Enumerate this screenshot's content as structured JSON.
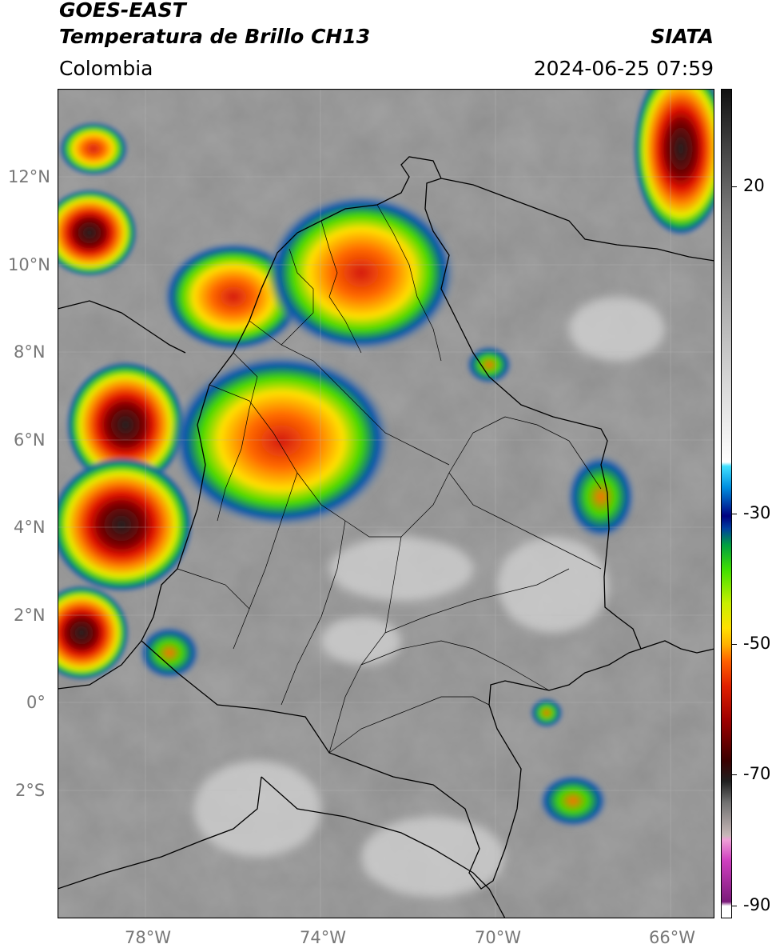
{
  "header": {
    "satellite": "GOES-EAST",
    "product": "Temperatura de Brillo CH13",
    "region": "Colombia",
    "organization": "SIATA",
    "datetime": "2024-06-25 07:59"
  },
  "map": {
    "latitude_labels": [
      "12°N",
      "10°N",
      "8°N",
      "6°N",
      "4°N",
      "2°N",
      "0°",
      "2°S"
    ],
    "longitude_labels": [
      "78°W",
      "74°W",
      "70°W",
      "66°W"
    ],
    "grid": true,
    "base_colors": {
      "cold_cloud_dark": "#1a1a1a",
      "ocean_gray": "#8a8a8a",
      "land_gray": "#9c9c9c",
      "border": "#000000"
    }
  },
  "colorbar": {
    "ticks": [
      "20",
      "-30",
      "-50",
      "-70",
      "-90"
    ],
    "tick_values": [
      20,
      -30,
      -50,
      -70,
      -90
    ],
    "range": [
      -92,
      35
    ],
    "colors": [
      "#ffffff",
      "#7a1a7a",
      "#d040c0",
      "#f0a0d8",
      "#d0c0c0",
      "#707070",
      "#202020",
      "#3a0000",
      "#a00000",
      "#e02000",
      "#ff6000",
      "#ffb000",
      "#ffe000",
      "#c8f000",
      "#40e000",
      "#00a040",
      "#0040a0",
      "#000080",
      "#0090e0",
      "#40e0ff",
      "#ffffff",
      "#101010"
    ]
  }
}
